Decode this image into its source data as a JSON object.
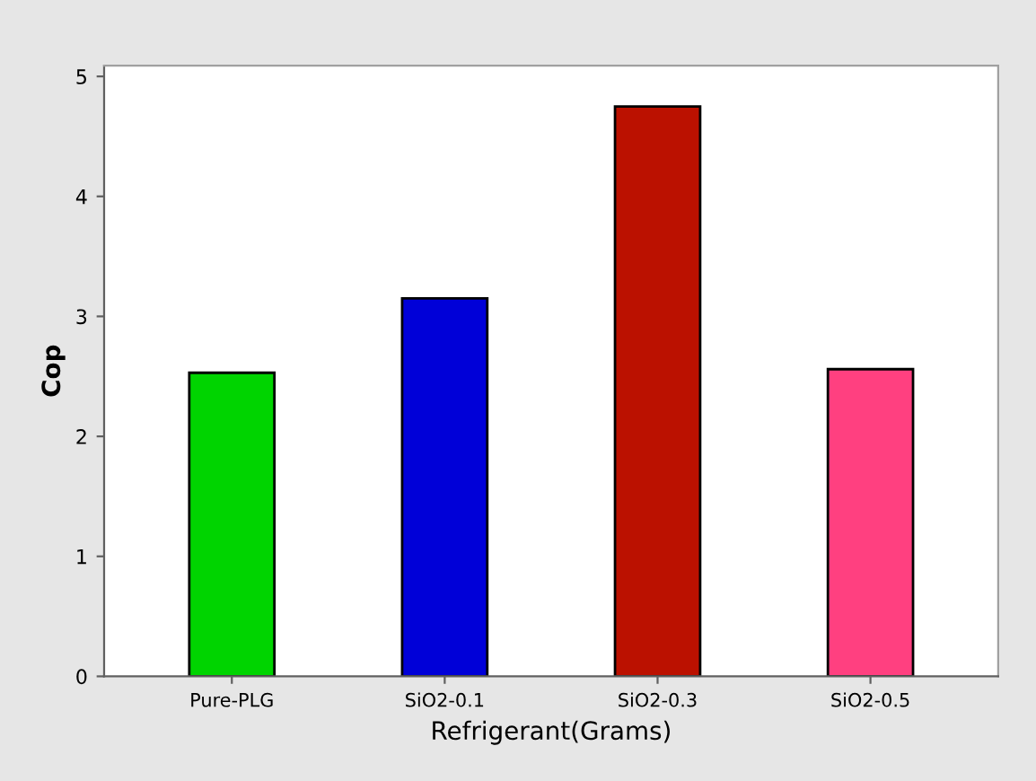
{
  "chart_data": {
    "type": "bar",
    "xlabel": "Refrigerant(Grams)",
    "ylabel": "Cop",
    "categories": [
      "Pure-PLG",
      "SiO2-0.1",
      "SiO2-0.3",
      "SiO2-0.5"
    ],
    "values": [
      2.53,
      3.15,
      4.75,
      2.56
    ],
    "colors": [
      "#00d400",
      "#0000d8",
      "#bb1100",
      "#ff4080"
    ],
    "ylim": [
      0,
      5.09
    ],
    "yticks": [
      0,
      1,
      2,
      3,
      4,
      5
    ],
    "grid": false,
    "legend": false
  }
}
